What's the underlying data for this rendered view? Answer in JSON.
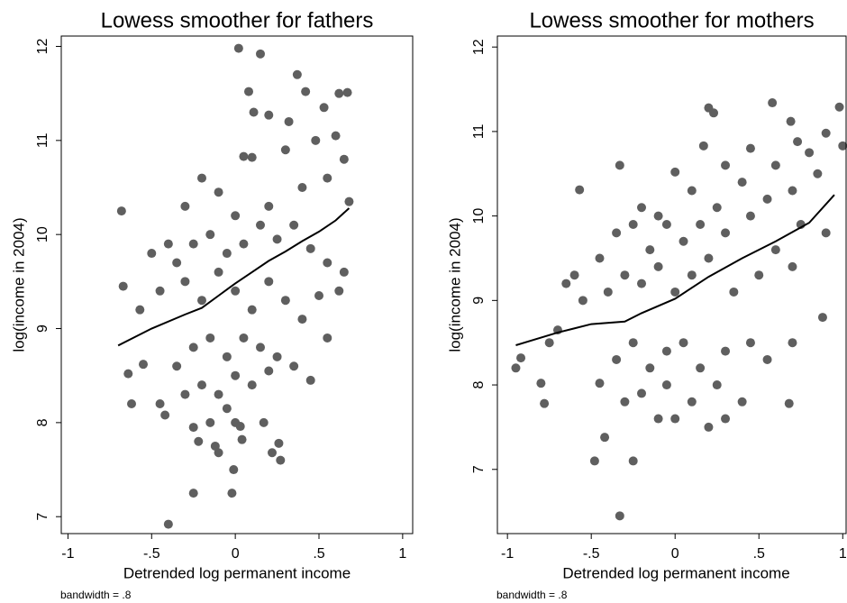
{
  "chart_data": [
    {
      "type": "scatter",
      "title": "Lowess smoother for fathers",
      "x_label": "Detrended log permanent income",
      "y_label": "log(income in 2004)",
      "note": "bandwidth = .8",
      "xlim": [
        -1.04,
        1.06
      ],
      "ylim": [
        6.82,
        12.11
      ],
      "xticks": [
        -1,
        {
          "value": -0.5,
          "label": "-.5"
        },
        0,
        {
          "value": 0.5,
          "label": ".5"
        },
        1
      ],
      "yticks": [
        7,
        8,
        9,
        10,
        11,
        12
      ],
      "series": [
        {
          "type": "scatter",
          "color": "#5f5f5f",
          "x": [
            0.02,
            0.15,
            0.37,
            0.42,
            0.08,
            0.62,
            0.67,
            0.11,
            0.2,
            0.53,
            0.32,
            0.6,
            0.05,
            0.1,
            0.3,
            0.48,
            0.65,
            -0.68,
            -0.2,
            -0.1,
            -0.3,
            0.0,
            0.2,
            0.4,
            0.55,
            0.68,
            -0.5,
            -0.4,
            -0.35,
            -0.25,
            -0.15,
            -0.05,
            0.05,
            0.15,
            0.25,
            0.35,
            0.45,
            0.55,
            0.65,
            -0.67,
            -0.57,
            -0.45,
            -0.3,
            -0.2,
            -0.1,
            0.0,
            0.1,
            0.2,
            0.3,
            0.4,
            0.5,
            0.62,
            -0.64,
            -0.62,
            -0.45,
            -0.42,
            -0.35,
            -0.25,
            -0.15,
            -0.05,
            0.05,
            0.15,
            0.25,
            0.35,
            0.45,
            0.55,
            -0.3,
            -0.2,
            -0.1,
            0.0,
            0.1,
            0.2,
            -0.25,
            -0.15,
            0.0,
            0.03,
            0.17,
            -0.22,
            -0.12,
            -0.1,
            0.04,
            0.22,
            0.26,
            0.27,
            -0.01,
            -0.25,
            -0.02,
            -0.4,
            -0.55,
            -0.05
          ],
          "values": [
            11.98,
            11.92,
            11.7,
            11.52,
            11.52,
            11.5,
            11.51,
            11.3,
            11.27,
            11.35,
            11.2,
            11.05,
            10.83,
            10.82,
            10.9,
            11.0,
            10.8,
            10.25,
            10.6,
            10.45,
            10.3,
            10.2,
            10.3,
            10.5,
            10.6,
            10.35,
            9.8,
            9.9,
            9.7,
            9.9,
            10.0,
            9.8,
            9.9,
            10.1,
            9.95,
            10.1,
            9.85,
            9.7,
            9.6,
            9.45,
            9.2,
            9.4,
            9.5,
            9.3,
            9.6,
            9.4,
            9.2,
            9.5,
            9.3,
            9.1,
            9.35,
            9.4,
            8.52,
            8.2,
            8.2,
            8.08,
            8.6,
            8.8,
            8.9,
            8.7,
            8.9,
            8.8,
            8.7,
            8.6,
            8.45,
            8.9,
            8.3,
            8.4,
            8.3,
            8.5,
            8.4,
            8.55,
            7.95,
            8.0,
            8.0,
            7.96,
            8.0,
            7.8,
            7.75,
            7.68,
            7.82,
            7.68,
            7.78,
            7.6,
            7.5,
            7.25,
            7.25,
            6.92,
            8.62,
            8.15
          ]
        },
        {
          "type": "line",
          "color": "#000000",
          "x": [
            -0.7,
            -0.5,
            -0.3,
            -0.2,
            -0.1,
            0,
            0.1,
            0.2,
            0.3,
            0.4,
            0.5,
            0.6,
            0.68
          ],
          "values": [
            8.82,
            9.0,
            9.15,
            9.22,
            9.35,
            9.48,
            9.6,
            9.72,
            9.82,
            9.93,
            10.03,
            10.15,
            10.28
          ]
        }
      ]
    },
    {
      "type": "scatter",
      "title": "Lowess smoother for mothers",
      "x_label": "Detrended log permanent income",
      "y_label": "log(income in 2004)",
      "note": "bandwidth = .8",
      "xlim": [
        -1.06,
        1.02
      ],
      "ylim": [
        6.24,
        12.13
      ],
      "xticks": [
        -1,
        {
          "value": -0.5,
          "label": "-.5"
        },
        0,
        {
          "value": 0.5,
          "label": ".5"
        },
        1
      ],
      "yticks": [
        7,
        8,
        9,
        10,
        11,
        12
      ],
      "series": [
        {
          "type": "scatter",
          "color": "#5f5f5f",
          "x": [
            0.2,
            0.23,
            0.58,
            0.69,
            0.98,
            1.0,
            0.73,
            0.9,
            0.17,
            -0.33,
            -0.57,
            0.0,
            0.3,
            0.45,
            0.6,
            0.8,
            -0.2,
            -0.1,
            0.1,
            0.25,
            0.4,
            0.55,
            0.7,
            0.85,
            -0.45,
            -0.35,
            -0.25,
            -0.15,
            -0.05,
            0.05,
            0.15,
            0.3,
            0.45,
            0.6,
            0.75,
            0.9,
            -0.6,
            -0.65,
            -0.55,
            -0.4,
            -0.3,
            -0.2,
            -0.1,
            0.0,
            0.1,
            0.2,
            0.35,
            0.5,
            0.7,
            0.88,
            -0.95,
            -0.92,
            -0.8,
            -0.78,
            -0.75,
            -0.7,
            -0.45,
            -0.35,
            -0.25,
            -0.15,
            -0.05,
            0.05,
            0.15,
            0.3,
            0.45,
            0.55,
            0.7,
            -0.3,
            -0.2,
            -0.05,
            0.1,
            0.25,
            0.4,
            0.68,
            -0.1,
            0.0,
            0.2,
            0.3,
            -0.42,
            -0.48,
            -0.25,
            -0.33
          ],
          "values": [
            11.28,
            11.22,
            11.34,
            11.12,
            11.29,
            10.83,
            10.88,
            10.98,
            10.83,
            10.6,
            10.31,
            10.52,
            10.6,
            10.8,
            10.6,
            10.75,
            10.1,
            10.0,
            10.3,
            10.1,
            10.4,
            10.2,
            10.3,
            10.5,
            9.5,
            9.8,
            9.9,
            9.6,
            9.9,
            9.7,
            9.9,
            9.8,
            10.0,
            9.6,
            9.9,
            9.8,
            9.3,
            9.2,
            9.0,
            9.1,
            9.3,
            9.2,
            9.4,
            9.1,
            9.3,
            9.5,
            9.1,
            9.3,
            9.4,
            8.8,
            8.2,
            8.32,
            8.02,
            7.78,
            8.5,
            8.65,
            8.02,
            8.3,
            8.5,
            8.2,
            8.4,
            8.5,
            8.2,
            8.4,
            8.5,
            8.3,
            8.5,
            7.8,
            7.9,
            8.0,
            7.8,
            8.0,
            7.8,
            7.78,
            7.6,
            7.6,
            7.5,
            7.6,
            7.38,
            7.1,
            7.1,
            6.45
          ]
        },
        {
          "type": "line",
          "color": "#000000",
          "x": [
            -0.95,
            -0.7,
            -0.5,
            -0.3,
            -0.2,
            0,
            0.2,
            0.4,
            0.6,
            0.8,
            0.95
          ],
          "values": [
            8.47,
            8.62,
            8.72,
            8.75,
            8.85,
            9.02,
            9.28,
            9.5,
            9.7,
            9.92,
            10.25
          ]
        }
      ]
    }
  ]
}
